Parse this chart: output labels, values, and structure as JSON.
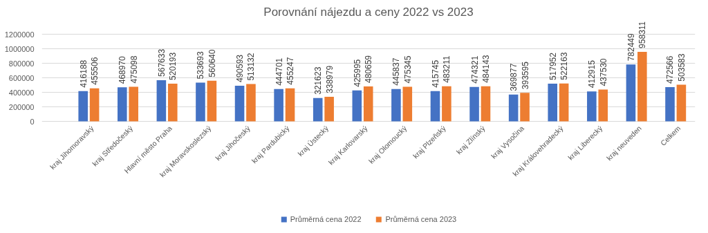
{
  "chart_data": {
    "type": "bar",
    "title": "Porovnání nájezdu a ceny 2022 vs 2023",
    "categories": [
      "kraj Jihomoravský",
      "kraj Středočeský",
      "Hlavní město Praha",
      "kraj Moravskoslezský",
      "kraj Jihočeský",
      "kraj Pardubický",
      "kraj Ústecký",
      "kraj Karlovarský",
      "kraj Olomoucký",
      "kraj Plzeňský",
      "kraj Zlínský",
      "kraj Vysočina",
      "kraj Královehradecký",
      "kraj Liberecký",
      "kraj neuveden",
      "Celkem"
    ],
    "series": [
      {
        "name": "Průměrná cena 2022",
        "color": "#4472c4",
        "values": [
          416188,
          468970,
          567633,
          533693,
          490593,
          444701,
          321623,
          425995,
          445837,
          415745,
          474321,
          369877,
          517952,
          412915,
          782449,
          472566
        ]
      },
      {
        "name": "Průměrná cena 2023",
        "color": "#ed7d31",
        "values": [
          455506,
          475098,
          520193,
          560640,
          513132,
          455247,
          338979,
          480659,
          475345,
          483211,
          484143,
          393595,
          522163,
          437530,
          958311,
          503583
        ]
      }
    ],
    "ylim": [
      0,
      1200000
    ],
    "yticks": [
      0,
      200000,
      400000,
      600000,
      800000,
      1000000,
      1200000
    ],
    "grid": "y",
    "legend": "bottom",
    "data_labels": true
  }
}
